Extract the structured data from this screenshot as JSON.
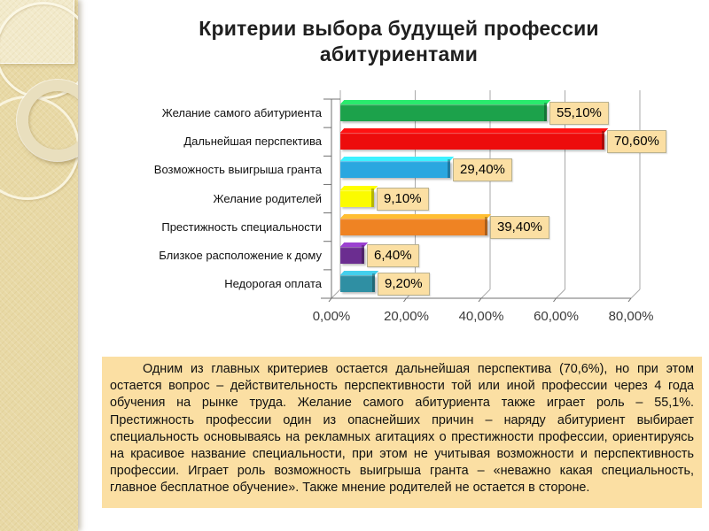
{
  "slide": {
    "title": "Критерии выбора будущей профессии абитуриентами",
    "body_text": "Одним из главных критериев остается дальнейшая перспектива (70,6%), но при этом остается вопрос – действительность перспективности той или иной профессии через 4 года обучения на рынке труда. Желание самого абитуриента также играет роль – 55,1%. Престижность профессии один из опаснейших причин – наряду абитуриент выбирает специальность основываясь на рекламных агитациях о престижности профессии, ориентируясь на красивое название специальности, при этом не учитывая возможности и перспективность профессии. Играет роль возможность выигрыша гранта – «неважно какая специальность, главное бесплатное обучение». Также мнение родителей не остается в стороне."
  },
  "chart_data": {
    "type": "bar",
    "orientation": "horizontal",
    "effect": "3d",
    "grid": true,
    "categories": [
      "Желание самого абитуриента",
      "Дальнейшая перспектива",
      "Возможность выигрыша гранта",
      "Желание родителей",
      "Престижность специальности",
      "Близкое расположение к дому",
      "Недорогая оплата"
    ],
    "values": [
      55.1,
      70.6,
      29.4,
      9.1,
      39.4,
      6.4,
      9.2
    ],
    "value_labels": [
      "55,10%",
      "70,60%",
      "29,40%",
      "9,10%",
      "39,40%",
      "6,40%",
      "9,20%"
    ],
    "bar_colors": [
      "#1CA24B",
      "#ED0C0C",
      "#2AA7E0",
      "#FBFB00",
      "#EF8323",
      "#6B2D90",
      "#2F8FA3"
    ],
    "x_tick_labels": [
      "0,00%",
      "20,00%",
      "40,00%",
      "60,00%",
      "80,00%"
    ],
    "x_tick_values": [
      0,
      20,
      40,
      60,
      80
    ],
    "xlim": [
      0,
      80
    ],
    "value_label_bg": "#FBDFA3"
  },
  "colors": {
    "sidebar": "#E8D9A6",
    "text_box_bg": "#FBDFA3",
    "gridline": "#A9A9A9",
    "axis": "#707070"
  }
}
